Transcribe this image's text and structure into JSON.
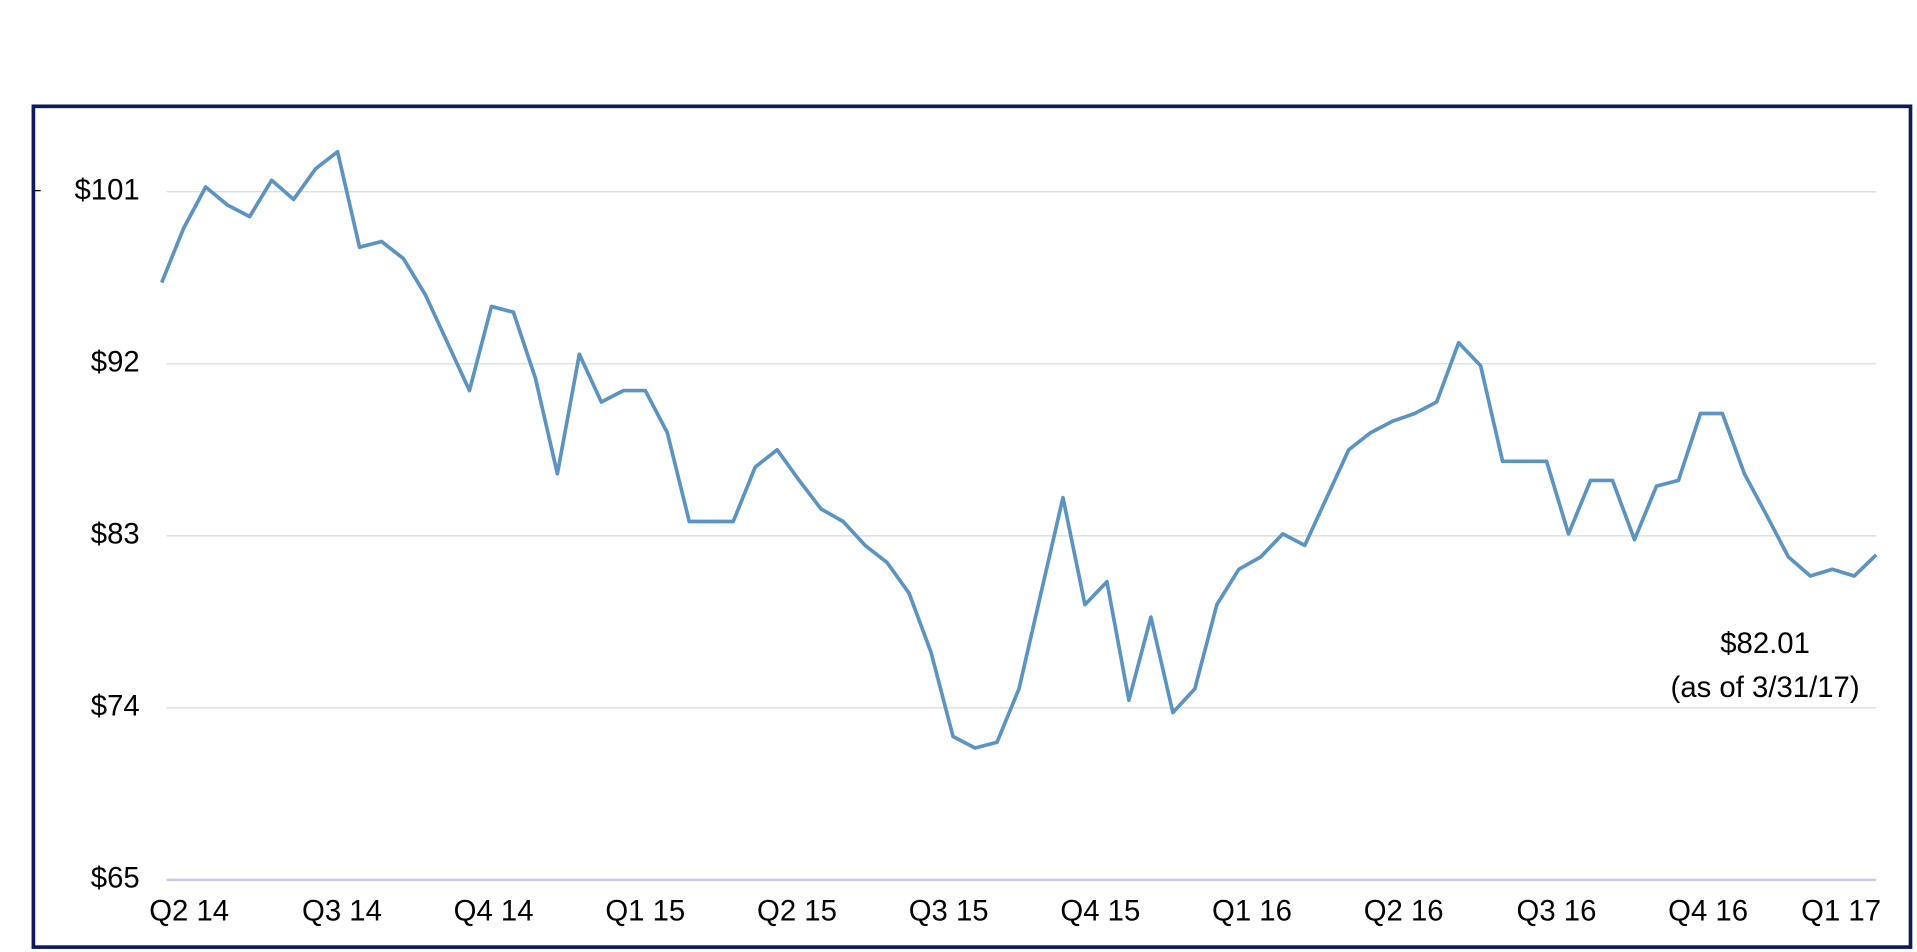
{
  "chart_data": {
    "type": "line",
    "annotations": [
      "$82.01",
      "(as of 3/31/17)"
    ],
    "x": [
      0,
      2,
      4,
      6,
      8,
      10,
      12,
      14,
      16,
      18,
      20,
      22,
      24,
      26,
      28,
      30,
      32,
      34,
      36,
      38,
      40,
      42,
      44,
      46,
      48,
      50,
      52,
      54,
      56,
      58,
      60,
      62,
      64,
      66,
      68,
      70,
      72,
      74,
      76,
      78,
      80,
      82,
      84,
      86,
      88,
      90,
      92,
      94,
      96,
      98,
      100,
      102,
      104,
      106,
      108,
      110,
      112,
      114,
      116,
      118,
      120,
      122,
      124,
      126,
      128,
      130,
      132,
      134,
      136,
      138,
      140,
      142,
      144,
      146,
      148,
      150,
      152,
      154,
      156
    ],
    "series": [
      {
        "color": "#5b93c1",
        "values": [
          96.25,
          99.1,
          101.25,
          100.3,
          99.7,
          101.6,
          100.6,
          102.2,
          103.1,
          98.1,
          98.4,
          97.5,
          95.6,
          93.1,
          90.6,
          95,
          94.7,
          91.25,
          86.25,
          92.5,
          90,
          90.6,
          90.6,
          88.4,
          83.75,
          83.75,
          83.75,
          86.6,
          87.5,
          85.9,
          84.4,
          83.75,
          82.5,
          81.6,
          80,
          76.9,
          72.5,
          71.9,
          72.2,
          75,
          80,
          85,
          79.4,
          80.6,
          74.4,
          78.75,
          73.75,
          75,
          79.4,
          81.25,
          81.9,
          83.1,
          82.5,
          85,
          87.5,
          88.4,
          89,
          89.4,
          90,
          93.1,
          91.9,
          86.9,
          86.9,
          86.9,
          83.1,
          85.9,
          85.9,
          82.8,
          85.6,
          85.9,
          89.4,
          89.4,
          86.25,
          84.1,
          81.9,
          80.9,
          81.25,
          80.9,
          82.01
        ]
      }
    ],
    "xlim": [
      0,
      156
    ],
    "xticks": [
      {
        "value": 2.5,
        "label": "Q2 14"
      },
      {
        "value": 16.4,
        "label": "Q3 14"
      },
      {
        "value": 30.2,
        "label": "Q4 14"
      },
      {
        "value": 44,
        "label": "Q1 15"
      },
      {
        "value": 57.8,
        "label": "Q2 15"
      },
      {
        "value": 71.6,
        "label": "Q3 15"
      },
      {
        "value": 85.4,
        "label": "Q4 15"
      },
      {
        "value": 99.2,
        "label": "Q1 16"
      },
      {
        "value": 113,
        "label": "Q2 16"
      },
      {
        "value": 126.9,
        "label": "Q3 16"
      },
      {
        "value": 140.7,
        "label": "Q4 16"
      },
      {
        "value": 152.8,
        "label": "Q1 17"
      }
    ],
    "ylim": [
      65,
      104
    ],
    "yticks": [
      {
        "value": 65,
        "label": "$65"
      },
      {
        "value": 74,
        "label": "$74"
      },
      {
        "value": 83,
        "label": "$83"
      },
      {
        "value": 92,
        "label": "$92"
      },
      {
        "value": 101,
        "label": "$101"
      }
    ],
    "grid": true
  }
}
